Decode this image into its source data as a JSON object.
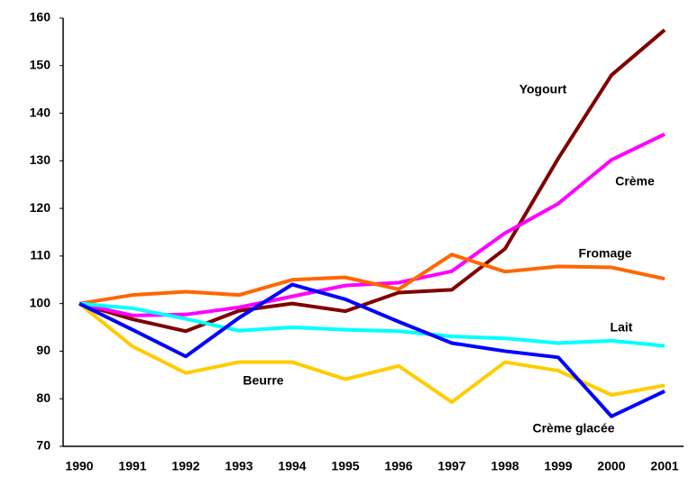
{
  "chart_data": {
    "type": "line",
    "categories": [
      "1990",
      "1991",
      "1992",
      "1993",
      "1994",
      "1995",
      "1996",
      "1997",
      "1998",
      "1999",
      "2000",
      "2001"
    ],
    "series": [
      {
        "name": "Yogourt",
        "color": "#800000",
        "values": [
          100,
          96.7,
          94.2,
          98.5,
          100,
          98.4,
          102.3,
          102.9,
          111.5,
          130.5,
          148,
          157.5
        ]
      },
      {
        "name": "Crème",
        "color": "#ff00ff",
        "values": [
          100,
          97.5,
          97.7,
          99.2,
          101.5,
          103.8,
          104.4,
          106.8,
          114.8,
          121,
          130.2,
          135.6
        ]
      },
      {
        "name": "Fromage",
        "color": "#ff6600",
        "values": [
          100,
          101.8,
          102.5,
          101.8,
          105,
          105.5,
          103,
          110.3,
          106.7,
          107.8,
          107.6,
          105.2
        ]
      },
      {
        "name": "Lait",
        "color": "#00ffff",
        "values": [
          100,
          99,
          96.8,
          94.3,
          95,
          94.5,
          94.2,
          93.1,
          92.7,
          91.7,
          92.2,
          91.1
        ]
      },
      {
        "name": "Beurre",
        "color": "#ffcc00",
        "values": [
          100,
          91,
          85.4,
          87.7,
          87.7,
          84.1,
          86.9,
          79.3,
          87.7,
          85.9,
          80.8,
          82.8
        ]
      },
      {
        "name": "Crème glacée",
        "color": "#0000ff",
        "values": [
          100,
          94.5,
          88.9,
          97,
          104,
          100.9,
          96.2,
          91.7,
          90,
          88.7,
          76.3,
          81.6
        ]
      }
    ],
    "ylim": [
      70,
      160
    ],
    "yticks": [
      70,
      80,
      90,
      100,
      110,
      120,
      130,
      140,
      150,
      160
    ],
    "grid": false
  }
}
